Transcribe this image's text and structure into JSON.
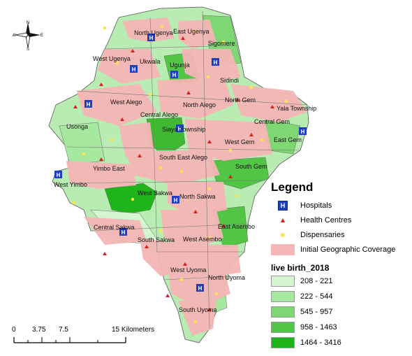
{
  "map": {
    "labels": [
      {
        "id": "north-ugenya",
        "text": "North Ugenya"
      },
      {
        "id": "east-ugenya",
        "text": "East Ugenya"
      },
      {
        "id": "sigomere",
        "text": "Sigomere"
      },
      {
        "id": "west-ugenya",
        "text": "West Ugenya"
      },
      {
        "id": "ukwala",
        "text": "Ukwala"
      },
      {
        "id": "ugunja",
        "text": "Ugunja"
      },
      {
        "id": "sidindi",
        "text": "Sidindi"
      },
      {
        "id": "west-alego",
        "text": "West Alego"
      },
      {
        "id": "north-alego",
        "text": "North Alego"
      },
      {
        "id": "north-gem",
        "text": "North Gem"
      },
      {
        "id": "yala-township",
        "text": "Yala Township"
      },
      {
        "id": "central-alego",
        "text": "Central Alego"
      },
      {
        "id": "central-gem",
        "text": "Central Gem"
      },
      {
        "id": "usonga",
        "text": "Usonga"
      },
      {
        "id": "siaya-township",
        "text": "Siaya Township"
      },
      {
        "id": "west-gem",
        "text": "West Gem"
      },
      {
        "id": "east-gem",
        "text": "East Gem"
      },
      {
        "id": "south-east-alego",
        "text": "South East Alego"
      },
      {
        "id": "south-gem",
        "text": "South Gem"
      },
      {
        "id": "yimbo-east",
        "text": "Yimbo East"
      },
      {
        "id": "west-yimbo",
        "text": "West Yimbo"
      },
      {
        "id": "west-sakwa",
        "text": "West Sakwa"
      },
      {
        "id": "north-sakwa",
        "text": "North Sakwa"
      },
      {
        "id": "central-sakwa",
        "text": "Central Sakwa"
      },
      {
        "id": "east-asembo",
        "text": "East Asembo"
      },
      {
        "id": "south-sakwa",
        "text": "South Sakwa"
      },
      {
        "id": "west-asembo",
        "text": "West Asembo"
      },
      {
        "id": "west-uyoma",
        "text": "West Uyoma"
      },
      {
        "id": "north-uyoma",
        "text": "North Uyoma"
      },
      {
        "id": "south-uyoma",
        "text": "South Uyoma"
      }
    ],
    "compass": {
      "n": "N",
      "s": "S",
      "e": "E",
      "w": "W"
    }
  },
  "legend": {
    "title": "Legend",
    "hospitals": "Hospitals",
    "hospital_symbol": "H",
    "health_centres": "Health Centres",
    "dispensaries": "Dispensaries",
    "coverage": "Initial Geographic Coverage",
    "class_title": "live birth_2018",
    "classes": [
      {
        "label": "208 - 221",
        "color": "#d4f5d0"
      },
      {
        "label": "222 - 544",
        "color": "#a6e89f"
      },
      {
        "label": "545 - 957",
        "color": "#7fd773"
      },
      {
        "label": "958 - 1463",
        "color": "#52c446"
      },
      {
        "label": "1464 - 3416",
        "color": "#1fb41a"
      }
    ]
  },
  "scale": {
    "ticks": [
      "0",
      "3.75",
      "7.5",
      "15 Kilometers"
    ]
  },
  "colors": {
    "coverage": "#f4b6b6",
    "hospital": "#1f3fbf",
    "health_centre": "#d42020",
    "dispensary": "#ffe54a"
  }
}
